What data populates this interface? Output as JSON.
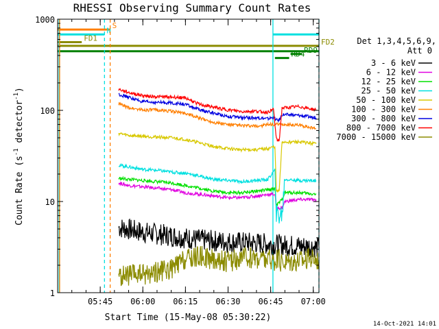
{
  "chart_data": {
    "type": "line",
    "title": "RHESSI Observing Summary Count Rates",
    "xlabel": "Start Time (15-May-08 05:30:22)",
    "ylabel_main": "Count Rate (s",
    "ylabel_sup1": "-1",
    "ylabel_mid": " detector",
    "ylabel_sup2": "-1",
    "ylabel_end": ")",
    "yscale": "log",
    "ylim": [
      1,
      1000
    ],
    "xlim_minutes": [
      0,
      92
    ],
    "x_ticks": [
      {
        "m": 15,
        "label": "05:45"
      },
      {
        "m": 30,
        "label": "06:00"
      },
      {
        "m": 45,
        "label": "06:15"
      },
      {
        "m": 60,
        "label": "06:30"
      },
      {
        "m": 75,
        "label": "06:45"
      },
      {
        "m": 90,
        "label": "07:00"
      }
    ],
    "y_ticks": [
      {
        "v": 1,
        "label": "1"
      },
      {
        "v": 10,
        "label": "10"
      },
      {
        "v": 100,
        "label": "100"
      },
      {
        "v": 1000,
        "label": "1000"
      }
    ],
    "legend_header1": "Det 1,3,4,5,6,9,",
    "legend_header2": "Att 0",
    "series": [
      {
        "name": "3 - 6 keV",
        "color": "#000000",
        "points": [
          [
            21.5,
            5.2
          ],
          [
            30,
            4.6
          ],
          [
            40,
            4.2
          ],
          [
            50,
            3.8
          ],
          [
            60,
            3.6
          ],
          [
            70,
            3.5
          ],
          [
            75,
            3.4
          ],
          [
            80,
            3.3
          ],
          [
            90,
            3.2
          ],
          [
            92,
            3.1
          ]
        ]
      },
      {
        "name": "6 - 12 keV",
        "color": "#e000e0",
        "points": [
          [
            21.5,
            16
          ],
          [
            25,
            15
          ],
          [
            35,
            14
          ],
          [
            40,
            13.5
          ],
          [
            45,
            12.5
          ],
          [
            50,
            12
          ],
          [
            55,
            11.5
          ],
          [
            60,
            11
          ],
          [
            65,
            11
          ],
          [
            70,
            11.5
          ],
          [
            75,
            12
          ],
          [
            76.5,
            12
          ],
          [
            77,
            8.5
          ],
          [
            79,
            8.5
          ],
          [
            80,
            10
          ],
          [
            85,
            10.5
          ],
          [
            91,
            10.5
          ]
        ]
      },
      {
        "name": "12 - 25 keV",
        "color": "#00e000",
        "points": [
          [
            21.5,
            18
          ],
          [
            25,
            17.5
          ],
          [
            35,
            16.5
          ],
          [
            40,
            16
          ],
          [
            45,
            15
          ],
          [
            50,
            14
          ],
          [
            55,
            13
          ],
          [
            60,
            12.5
          ],
          [
            65,
            12.5
          ],
          [
            70,
            13
          ],
          [
            75,
            13.5
          ],
          [
            76.5,
            14
          ],
          [
            77,
            9
          ],
          [
            79,
            10.5
          ],
          [
            80,
            12.5
          ],
          [
            85,
            12.5
          ],
          [
            91,
            12
          ]
        ]
      },
      {
        "name": "25 - 50 keV",
        "color": "#00e0e0",
        "points": [
          [
            21.5,
            25
          ],
          [
            25,
            24
          ],
          [
            30,
            22.5
          ],
          [
            35,
            22
          ],
          [
            40,
            21
          ],
          [
            45,
            20.5
          ],
          [
            50,
            19
          ],
          [
            55,
            17.5
          ],
          [
            60,
            17
          ],
          [
            65,
            16.5
          ],
          [
            70,
            17
          ],
          [
            74,
            17.5
          ],
          [
            76.5,
            22
          ],
          [
            77,
            7
          ],
          [
            79,
            7.2
          ],
          [
            80,
            17.5
          ],
          [
            85,
            17
          ],
          [
            91,
            17
          ]
        ]
      },
      {
        "name": "50 - 100 keV",
        "color": "#d8c800",
        "points": [
          [
            21.5,
            56
          ],
          [
            25,
            53
          ],
          [
            30,
            52
          ],
          [
            35,
            51
          ],
          [
            40,
            50
          ],
          [
            45,
            48
          ],
          [
            50,
            44
          ],
          [
            55,
            40
          ],
          [
            60,
            38
          ],
          [
            65,
            37
          ],
          [
            70,
            37
          ],
          [
            74,
            38
          ],
          [
            76.5,
            40
          ],
          [
            77,
            13
          ],
          [
            78,
            13
          ],
          [
            79,
            45
          ],
          [
            85,
            45
          ],
          [
            91,
            43
          ]
        ]
      },
      {
        "name": "100 - 300 keV",
        "color": "#ff7f00",
        "points": [
          [
            21.5,
            118
          ],
          [
            25,
            107
          ],
          [
            30,
            101
          ],
          [
            35,
            101
          ],
          [
            40,
            98
          ],
          [
            45,
            93
          ],
          [
            50,
            82
          ],
          [
            55,
            74
          ],
          [
            60,
            70
          ],
          [
            65,
            68
          ],
          [
            70,
            67
          ],
          [
            75,
            70
          ],
          [
            80,
            70
          ],
          [
            85,
            69
          ],
          [
            91,
            63
          ]
        ]
      },
      {
        "name": "300 - 800 keV",
        "color": "#0000e0",
        "points": [
          [
            21.5,
            150
          ],
          [
            25,
            139
          ],
          [
            30,
            124
          ],
          [
            35,
            122
          ],
          [
            40,
            121
          ],
          [
            45,
            116
          ],
          [
            50,
            101
          ],
          [
            55,
            93
          ],
          [
            60,
            86
          ],
          [
            65,
            83
          ],
          [
            70,
            83
          ],
          [
            74,
            81
          ],
          [
            76,
            84
          ],
          [
            77,
            78
          ],
          [
            78,
            78
          ],
          [
            79,
            90
          ],
          [
            85,
            88
          ],
          [
            91,
            83
          ]
        ]
      },
      {
        "name": "800 - 7000 keV",
        "color": "#ff0000",
        "points": [
          [
            21.5,
            170
          ],
          [
            25,
            157
          ],
          [
            30,
            145
          ],
          [
            35,
            141
          ],
          [
            40,
            140
          ],
          [
            45,
            137
          ],
          [
            50,
            116
          ],
          [
            55,
            108
          ],
          [
            60,
            101
          ],
          [
            65,
            97
          ],
          [
            70,
            98
          ],
          [
            74,
            95
          ],
          [
            76,
            104
          ],
          [
            77,
            48
          ],
          [
            78,
            46
          ],
          [
            79,
            106
          ],
          [
            85,
            110
          ],
          [
            91,
            101
          ]
        ]
      },
      {
        "name": "7000 - 15000 keV",
        "color": "#8b8b00",
        "points": [
          [
            21.5,
            1.5
          ],
          [
            30,
            1.6
          ],
          [
            40,
            1.8
          ],
          [
            45,
            2.3
          ],
          [
            50,
            2.5
          ],
          [
            55,
            2.3
          ],
          [
            60,
            2.2
          ],
          [
            65,
            2.4
          ],
          [
            70,
            2.4
          ],
          [
            75,
            2.3
          ],
          [
            80,
            2.2
          ],
          [
            85,
            2.3
          ],
          [
            90,
            2.4
          ],
          [
            92,
            2.3
          ]
        ]
      }
    ],
    "vertical_markers": [
      {
        "m": 0.5,
        "color": "#00e0e0",
        "style": "solid"
      },
      {
        "m": 0.7,
        "color": "#ff7f00",
        "style": "solid"
      },
      {
        "m": 16.5,
        "color": "#00e0e0",
        "style": "dashed"
      },
      {
        "m": 18.5,
        "color": "#ff7f00",
        "style": "dashed"
      },
      {
        "m": 75.8,
        "color": "#00e0e0",
        "style": "solid"
      },
      {
        "m": 92,
        "color": "#00e0e0",
        "style": "dashed"
      }
    ],
    "flags": [
      {
        "label": "S",
        "color": "#ff7f00",
        "value": 770,
        "start": 0,
        "end": 18.5
      },
      {
        "label": "N",
        "color": "#00e0e0",
        "value": 680,
        "start": 0,
        "end": 16.5
      },
      {
        "label": "",
        "color": "#00e0e0",
        "value": 680,
        "start": 75.8,
        "end": 92
      },
      {
        "label": "FD1",
        "color": "#8b8b00",
        "value": 560,
        "start": 0,
        "end": 8.5
      },
      {
        "label": "FD2",
        "color": "#8b8b00",
        "value": 510,
        "start": 0,
        "end": 92
      },
      {
        "label": "",
        "color": "#008000",
        "value": 445,
        "start": 0,
        "end": 92
      },
      {
        "label": "RD4",
        "color": "#008000",
        "value": 375,
        "start": 76.5,
        "end": 81.5
      },
      {
        "label": "RD9",
        "color": "#008000",
        "value": 415,
        "start": 82,
        "end": 86
      }
    ],
    "footer_timestamp": "14-Oct-2021 14:01"
  }
}
